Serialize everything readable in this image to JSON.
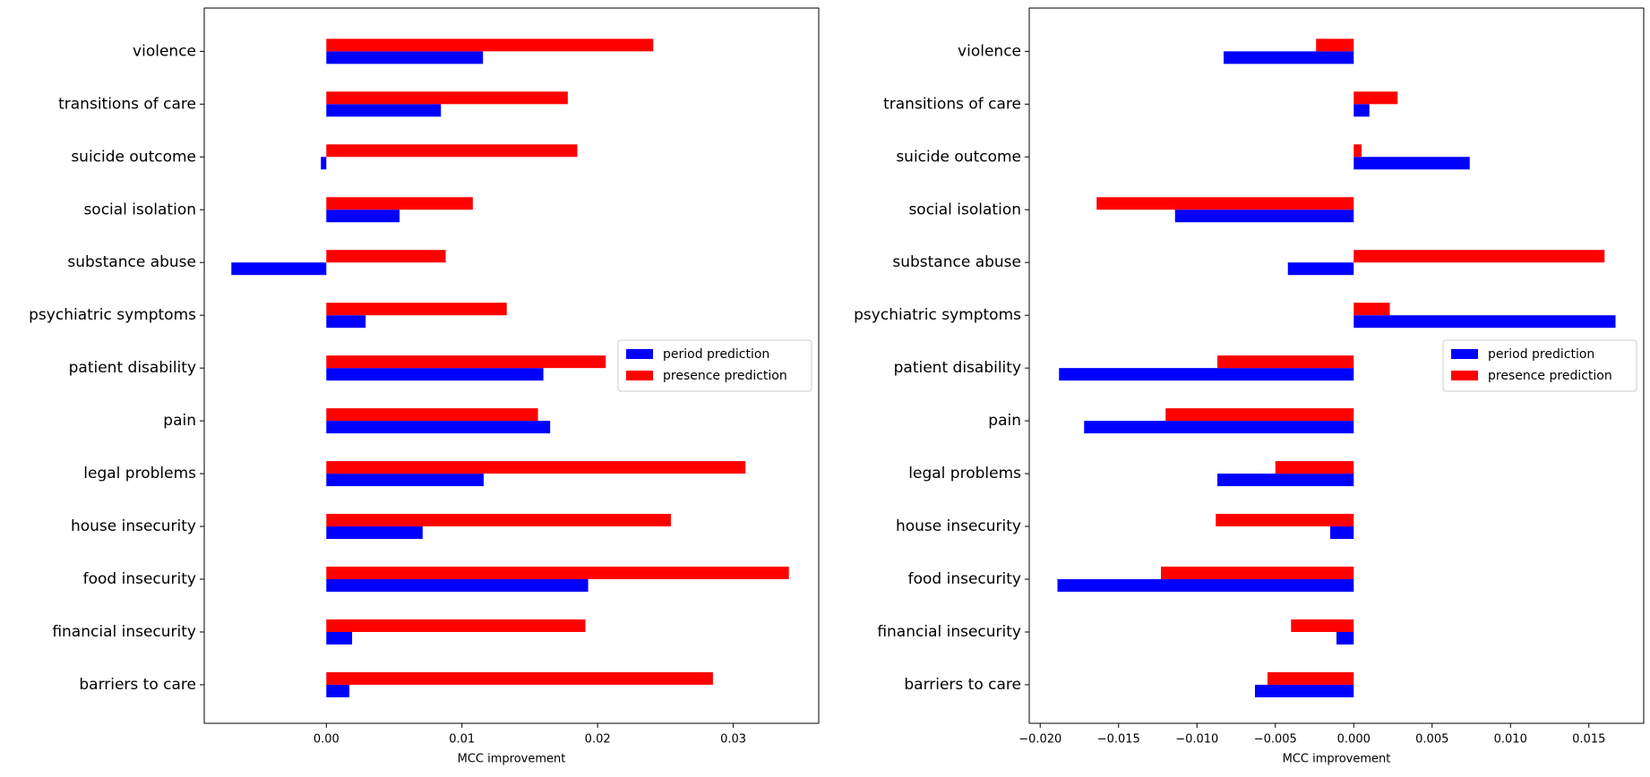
{
  "chart_data": [
    {
      "type": "barh",
      "xlabel": "MCC improvement",
      "categories": [
        "violence",
        "transitions of care",
        "suicide outcome",
        "social isolation",
        "substance abuse",
        "psychiatric symptoms",
        "patient disability",
        "pain",
        "legal problems",
        "house insecurity",
        "food insecurity",
        "financial insecurity",
        "barriers to care"
      ],
      "series": [
        {
          "name": "period prediction",
          "color": "#0000ff",
          "values": [
            0.01155,
            0.00845,
            -0.0004,
            0.0054,
            -0.007,
            0.0029,
            0.016,
            0.0165,
            0.0116,
            0.0071,
            0.0193,
            0.0019,
            0.0017
          ]
        },
        {
          "name": "presence prediction",
          "color": "#ff0000",
          "values": [
            0.0241,
            0.0178,
            0.0185,
            0.0108,
            0.0088,
            0.0133,
            0.0206,
            0.0156,
            0.0309,
            0.0254,
            0.0341,
            0.0191,
            0.0285
          ]
        }
      ],
      "xlim": [
        -0.009,
        0.0363
      ],
      "xticks": [
        {
          "value": 0,
          "label": "0.00"
        },
        {
          "value": 0.01,
          "label": "0.01"
        },
        {
          "value": 0.02,
          "label": "0.02"
        },
        {
          "value": 0.03,
          "label": "0.03"
        }
      ],
      "legend": "center right"
    },
    {
      "type": "barh",
      "xlabel": "MCC improvement",
      "categories": [
        "violence",
        "transitions of care",
        "suicide outcome",
        "social isolation",
        "substance abuse",
        "psychiatric symptoms",
        "patient disability",
        "pain",
        "legal problems",
        "house insecurity",
        "food insecurity",
        "financial insecurity",
        "barriers to care"
      ],
      "series": [
        {
          "name": "period prediction",
          "color": "#0000ff",
          "values": [
            -0.0083,
            0.001,
            0.0074,
            -0.0114,
            -0.0042,
            0.0167,
            -0.0188,
            -0.0172,
            -0.0087,
            -0.0015,
            -0.0189,
            -0.0011,
            -0.0063
          ]
        },
        {
          "name": "presence prediction",
          "color": "#ff0000",
          "values": [
            -0.0024,
            0.0028,
            0.0005,
            -0.0164,
            0.016,
            0.0023,
            -0.0087,
            -0.012,
            -0.005,
            -0.0088,
            -0.0123,
            -0.004,
            -0.0055
          ]
        }
      ],
      "xlim": [
        -0.0207,
        0.0185
      ],
      "xticks": [
        {
          "value": -0.02,
          "label": "−0.020"
        },
        {
          "value": -0.015,
          "label": "−0.015"
        },
        {
          "value": -0.01,
          "label": "−0.010"
        },
        {
          "value": -0.005,
          "label": "−0.005"
        },
        {
          "value": 0,
          "label": "0.000"
        },
        {
          "value": 0.005,
          "label": "0.005"
        },
        {
          "value": 0.01,
          "label": "0.010"
        },
        {
          "value": 0.015,
          "label": "0.015"
        }
      ],
      "legend": "center right"
    }
  ]
}
